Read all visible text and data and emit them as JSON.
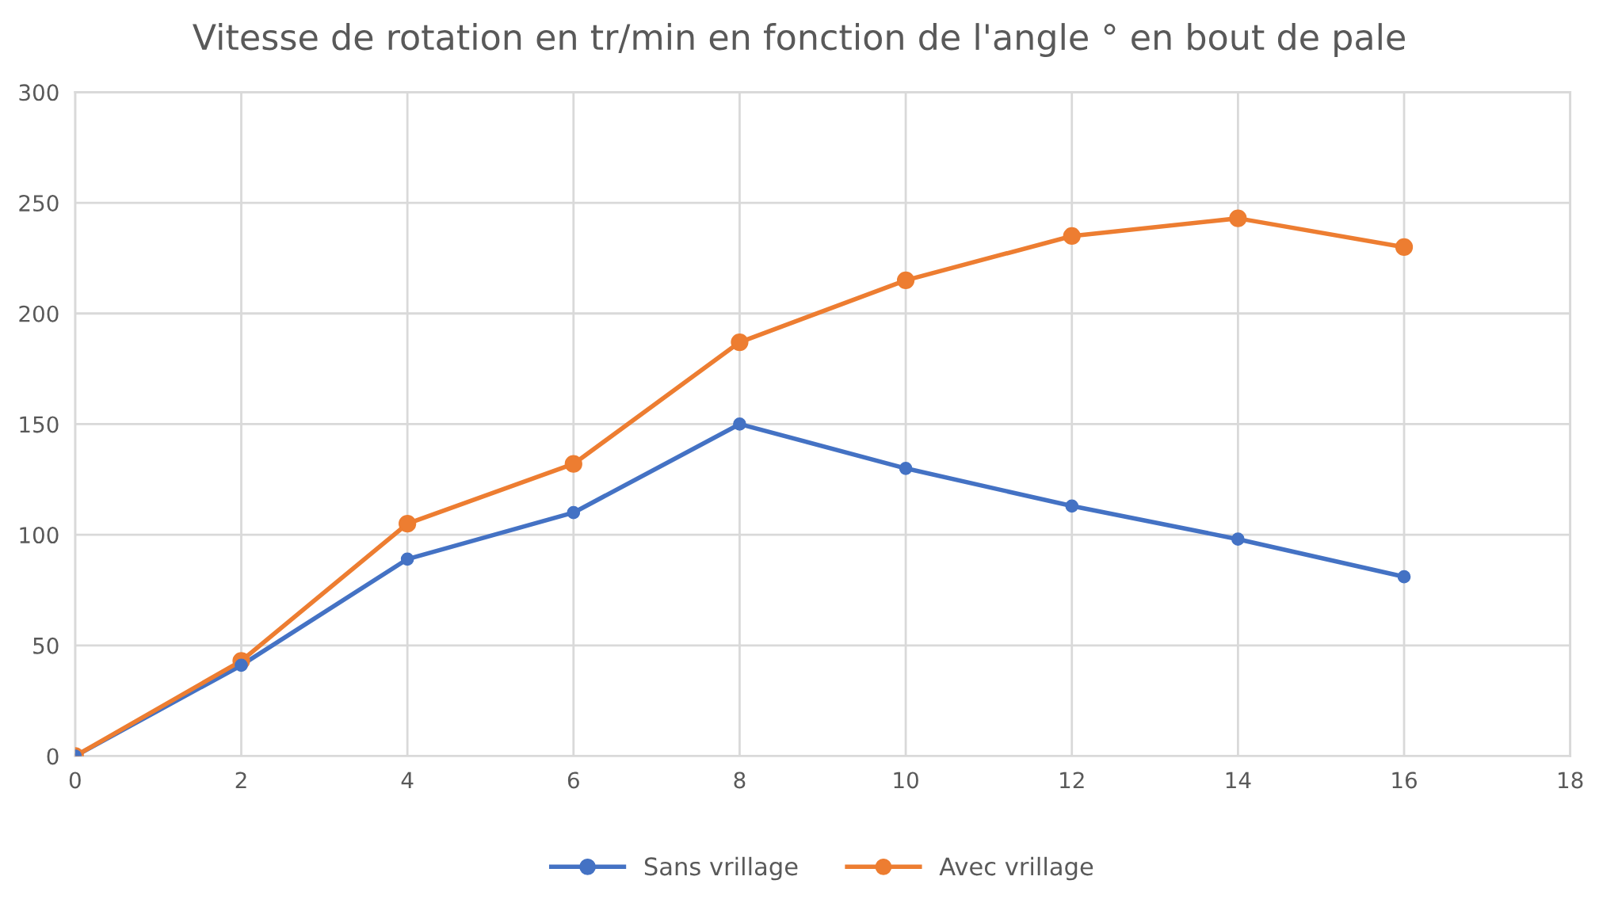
{
  "chart_data": {
    "type": "line",
    "title": "Vitesse de rotation en tr/min en fonction de l'angle ° en bout de pale",
    "x": [
      0,
      2,
      4,
      6,
      8,
      10,
      12,
      14,
      16
    ],
    "series": [
      {
        "name": "Sans vrillage",
        "color": "#4472c4",
        "values": [
          0,
          41,
          89,
          110,
          150,
          130,
          113,
          98,
          81
        ]
      },
      {
        "name": "Avec vrillage",
        "color": "#ed7d31",
        "values": [
          0,
          43,
          105,
          132,
          187,
          215,
          235,
          243,
          230
        ]
      }
    ],
    "xlim": [
      0,
      18
    ],
    "xticks": [
      0,
      2,
      4,
      6,
      8,
      10,
      12,
      14,
      16,
      18
    ],
    "ylim": [
      0,
      300
    ],
    "yticks": [
      0,
      50,
      100,
      150,
      200,
      250,
      300
    ],
    "grid": true,
    "legend": "bottom",
    "marker": "circle",
    "line_style": "solid"
  }
}
